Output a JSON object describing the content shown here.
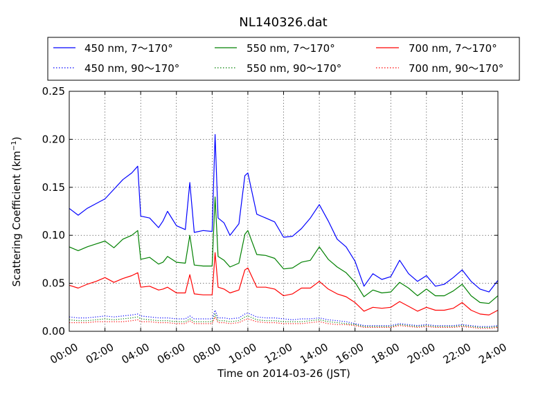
{
  "chart_data": {
    "type": "line",
    "title": "NL140326.dat",
    "xlabel": "Time on 2014-03-26 (JST)",
    "ylabel": "Scattering Coefficient (km",
    "ylabel_sup": "−1",
    "ylabel_tail": ")",
    "xlim": [
      "2014-03-26 00:00",
      "2014-03-27 00:00"
    ],
    "ylim": [
      0,
      0.25
    ],
    "x_tick_labels": [
      "00:00",
      "02:00",
      "04:00",
      "06:00",
      "08:00",
      "10:00",
      "12:00",
      "14:00",
      "16:00",
      "18:00",
      "20:00",
      "22:00",
      "24:00"
    ],
    "y_ticks": [
      0.0,
      0.05,
      0.1,
      0.15,
      0.2,
      0.25
    ],
    "y_tick_labels": [
      "0.00",
      "0.05",
      "0.10",
      "0.15",
      "0.20",
      "0.25"
    ],
    "grid": true,
    "legend_placement": "top, above plot, 3 columns",
    "legend_entries": [
      {
        "label": "450 nm, 7～170°",
        "color": "#0000ff",
        "style": "solid"
      },
      {
        "label": "550 nm, 7～170°",
        "color": "#008000",
        "style": "solid"
      },
      {
        "label": "700 nm, 7～170°",
        "color": "#ff0000",
        "style": "solid"
      },
      {
        "label": "450 nm, 90～170°",
        "color": "#0000ff",
        "style": "dotted"
      },
      {
        "label": "550 nm, 90～170°",
        "color": "#008000",
        "style": "dotted"
      },
      {
        "label": "700 nm, 90～170°",
        "color": "#ff0000",
        "style": "dotted"
      }
    ],
    "x": [
      "00:00",
      "00:30",
      "01:00",
      "01:30",
      "02:00",
      "02:30",
      "03:00",
      "03:30",
      "03:50",
      "04:00",
      "04:30",
      "05:00",
      "05:15",
      "05:30",
      "06:00",
      "06:30",
      "06:45",
      "07:00",
      "07:30",
      "08:00",
      "08:10",
      "08:20",
      "08:40",
      "09:00",
      "09:30",
      "09:50",
      "10:00",
      "10:30",
      "11:00",
      "11:30",
      "12:00",
      "12:30",
      "13:00",
      "13:30",
      "14:00",
      "14:30",
      "15:00",
      "15:30",
      "16:00",
      "16:30",
      "17:00",
      "17:30",
      "18:00",
      "18:30",
      "19:00",
      "19:30",
      "20:00",
      "20:30",
      "21:00",
      "21:30",
      "22:00",
      "22:30",
      "23:00",
      "23:30",
      "24:00"
    ],
    "series": [
      {
        "name": "450 nm, 7～170°",
        "color": "#0000ff",
        "style": "solid",
        "values": [
          0.128,
          0.121,
          0.128,
          0.133,
          0.138,
          0.148,
          0.158,
          0.165,
          0.172,
          0.12,
          0.118,
          0.108,
          0.115,
          0.125,
          0.11,
          0.106,
          0.155,
          0.103,
          0.105,
          0.104,
          0.205,
          0.118,
          0.113,
          0.1,
          0.112,
          0.162,
          0.165,
          0.122,
          0.118,
          0.114,
          0.098,
          0.099,
          0.107,
          0.118,
          0.132,
          0.115,
          0.096,
          0.088,
          0.073,
          0.047,
          0.06,
          0.054,
          0.057,
          0.074,
          0.06,
          0.052,
          0.058,
          0.047,
          0.049,
          0.056,
          0.064,
          0.052,
          0.044,
          0.041,
          0.053
        ]
      },
      {
        "name": "550 nm, 7～170°",
        "color": "#008000",
        "style": "solid",
        "values": [
          0.088,
          0.084,
          0.088,
          0.091,
          0.094,
          0.087,
          0.096,
          0.1,
          0.105,
          0.075,
          0.077,
          0.07,
          0.072,
          0.078,
          0.072,
          0.071,
          0.1,
          0.069,
          0.068,
          0.068,
          0.14,
          0.078,
          0.074,
          0.067,
          0.071,
          0.101,
          0.105,
          0.08,
          0.079,
          0.076,
          0.065,
          0.066,
          0.072,
          0.074,
          0.088,
          0.075,
          0.067,
          0.061,
          0.051,
          0.036,
          0.043,
          0.04,
          0.041,
          0.051,
          0.045,
          0.037,
          0.044,
          0.037,
          0.037,
          0.042,
          0.049,
          0.037,
          0.03,
          0.029,
          0.037
        ]
      },
      {
        "name": "700 nm, 7～170°",
        "color": "#ff0000",
        "style": "solid",
        "values": [
          0.048,
          0.045,
          0.049,
          0.052,
          0.056,
          0.051,
          0.055,
          0.058,
          0.061,
          0.046,
          0.047,
          0.043,
          0.044,
          0.046,
          0.04,
          0.04,
          0.059,
          0.039,
          0.038,
          0.038,
          0.082,
          0.046,
          0.044,
          0.04,
          0.043,
          0.064,
          0.066,
          0.046,
          0.046,
          0.044,
          0.037,
          0.039,
          0.045,
          0.045,
          0.052,
          0.044,
          0.039,
          0.036,
          0.03,
          0.021,
          0.025,
          0.024,
          0.025,
          0.031,
          0.026,
          0.021,
          0.025,
          0.022,
          0.022,
          0.024,
          0.03,
          0.022,
          0.018,
          0.017,
          0.022
        ]
      },
      {
        "name": "450 nm, 90～170°",
        "color": "#0000ff",
        "style": "dotted",
        "values": [
          0.015,
          0.014,
          0.014,
          0.015,
          0.016,
          0.015,
          0.016,
          0.017,
          0.018,
          0.016,
          0.015,
          0.014,
          0.014,
          0.014,
          0.013,
          0.013,
          0.016,
          0.013,
          0.013,
          0.013,
          0.022,
          0.014,
          0.014,
          0.013,
          0.014,
          0.018,
          0.019,
          0.015,
          0.014,
          0.014,
          0.013,
          0.012,
          0.013,
          0.013,
          0.014,
          0.012,
          0.011,
          0.01,
          0.008,
          0.006,
          0.006,
          0.006,
          0.006,
          0.008,
          0.007,
          0.006,
          0.007,
          0.006,
          0.006,
          0.006,
          0.007,
          0.006,
          0.005,
          0.005,
          0.006
        ]
      },
      {
        "name": "550 nm, 90～170°",
        "color": "#008000",
        "style": "dotted",
        "values": [
          0.012,
          0.011,
          0.011,
          0.012,
          0.013,
          0.012,
          0.013,
          0.014,
          0.015,
          0.013,
          0.012,
          0.011,
          0.011,
          0.011,
          0.01,
          0.01,
          0.013,
          0.01,
          0.01,
          0.01,
          0.018,
          0.011,
          0.011,
          0.01,
          0.011,
          0.015,
          0.016,
          0.012,
          0.011,
          0.011,
          0.01,
          0.01,
          0.01,
          0.011,
          0.012,
          0.01,
          0.009,
          0.008,
          0.007,
          0.005,
          0.005,
          0.005,
          0.005,
          0.007,
          0.006,
          0.005,
          0.006,
          0.005,
          0.005,
          0.005,
          0.006,
          0.005,
          0.004,
          0.004,
          0.005
        ]
      },
      {
        "name": "700 nm, 90～170°",
        "color": "#ff0000",
        "style": "dotted",
        "values": [
          0.009,
          0.009,
          0.009,
          0.01,
          0.01,
          0.01,
          0.01,
          0.011,
          0.012,
          0.01,
          0.01,
          0.009,
          0.009,
          0.009,
          0.008,
          0.008,
          0.011,
          0.008,
          0.008,
          0.008,
          0.015,
          0.009,
          0.009,
          0.008,
          0.009,
          0.012,
          0.013,
          0.01,
          0.009,
          0.009,
          0.008,
          0.008,
          0.008,
          0.009,
          0.01,
          0.008,
          0.007,
          0.007,
          0.006,
          0.004,
          0.004,
          0.004,
          0.004,
          0.006,
          0.005,
          0.004,
          0.005,
          0.004,
          0.004,
          0.004,
          0.005,
          0.004,
          0.003,
          0.003,
          0.004
        ]
      }
    ]
  }
}
